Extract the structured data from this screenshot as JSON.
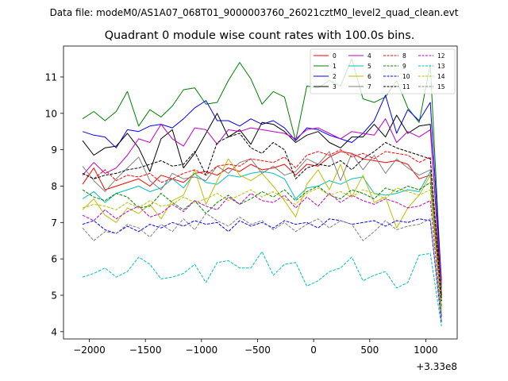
{
  "chart_data": {
    "type": "line",
    "suptitle": "Data file: modeM0/AS1A07_068T01_9000003760_26021cztM0_level2_quad_clean.evt",
    "title": "Quadrant 0 module wise count rates with 100.0s bins.",
    "xlabel": "",
    "ylabel": "",
    "x_offset_label": "+3.33e8",
    "xlim": [
      -2230,
      1280
    ],
    "ylim": [
      3.8,
      11.85
    ],
    "xticks": [
      -2000,
      -1500,
      -1000,
      -500,
      0,
      500,
      1000
    ],
    "xtick_labels": [
      "−2000",
      "−1500",
      "−1000",
      "−500",
      "0",
      "500",
      "1000"
    ],
    "yticks": [
      4,
      5,
      6,
      7,
      8,
      9,
      10,
      11
    ],
    "ytick_labels": [
      "4",
      "5",
      "6",
      "7",
      "8",
      "9",
      "10",
      "11"
    ],
    "legend_position": "upper-right",
    "x": [
      -2060,
      -1960,
      -1860,
      -1760,
      -1660,
      -1560,
      -1460,
      -1360,
      -1260,
      -1160,
      -1060,
      -960,
      -860,
      -760,
      -660,
      -560,
      -460,
      -360,
      -260,
      -160,
      -60,
      40,
      140,
      240,
      340,
      440,
      540,
      640,
      740,
      840,
      940,
      1040,
      1140
    ],
    "series": [
      {
        "name": "0",
        "color": "#ff0000",
        "dash": "solid",
        "values": [
          8.05,
          8.5,
          7.9,
          8.0,
          8.1,
          8.2,
          8.0,
          8.3,
          8.2,
          8.1,
          8.35,
          8.4,
          8.3,
          8.5,
          8.4,
          8.6,
          8.45,
          8.5,
          8.6,
          8.3,
          8.6,
          8.55,
          8.8,
          8.95,
          8.9,
          8.75,
          8.7,
          8.65,
          8.7,
          8.6,
          8.2,
          8.3,
          5.0
        ]
      },
      {
        "name": "1",
        "color": "#008000",
        "dash": "solid",
        "values": [
          9.85,
          10.05,
          9.8,
          10.05,
          10.6,
          9.65,
          10.1,
          9.9,
          10.2,
          10.65,
          10.7,
          10.25,
          10.3,
          10.9,
          11.4,
          10.95,
          10.25,
          10.6,
          10.45,
          9.25,
          10.75,
          10.7,
          10.9,
          10.75,
          11.5,
          10.4,
          10.3,
          10.45,
          10.9,
          10.15,
          9.75,
          11.35,
          5.2
        ]
      },
      {
        "name": "2",
        "color": "#0000ff",
        "dash": "solid",
        "values": [
          9.5,
          9.4,
          9.35,
          9.05,
          9.55,
          9.5,
          9.65,
          9.7,
          9.6,
          9.85,
          10.15,
          10.35,
          9.8,
          9.8,
          9.65,
          9.85,
          9.7,
          9.8,
          9.6,
          9.25,
          9.6,
          9.55,
          9.4,
          9.3,
          9.2,
          9.45,
          9.8,
          10.5,
          9.45,
          10.1,
          9.8,
          10.3,
          5.4
        ]
      },
      {
        "name": "3",
        "color": "#000000",
        "dash": "solid",
        "values": [
          9.25,
          8.85,
          9.05,
          9.1,
          9.45,
          9.05,
          8.4,
          9.3,
          9.55,
          8.5,
          8.9,
          9.45,
          10.0,
          9.35,
          9.55,
          9.15,
          9.75,
          9.7,
          9.5,
          9.2,
          9.4,
          9.5,
          9.2,
          9.05,
          9.35,
          9.35,
          9.7,
          9.35,
          9.95,
          9.45,
          9.65,
          9.7,
          5.0
        ]
      },
      {
        "name": "4",
        "color": "#bf00bf",
        "dash": "solid",
        "values": [
          8.3,
          8.65,
          8.35,
          8.5,
          8.85,
          9.3,
          9.2,
          9.7,
          9.3,
          9.1,
          9.6,
          9.55,
          9.15,
          9.55,
          9.5,
          9.6,
          9.55,
          9.5,
          9.45,
          9.3,
          9.55,
          9.6,
          9.45,
          9.3,
          9.5,
          9.45,
          9.4,
          9.85,
          9.2,
          9.5,
          9.35,
          9.55,
          5.3
        ]
      },
      {
        "name": "5",
        "color": "#00bfbf",
        "dash": "solid",
        "values": [
          7.65,
          7.85,
          7.55,
          7.8,
          7.9,
          8.0,
          7.85,
          7.95,
          8.2,
          7.95,
          8.35,
          8.1,
          8.05,
          8.3,
          8.25,
          8.35,
          8.4,
          8.35,
          8.2,
          7.65,
          7.95,
          8.0,
          8.15,
          8.05,
          8.2,
          8.25,
          7.8,
          7.75,
          7.8,
          7.9,
          7.85,
          8.4,
          4.45
        ]
      },
      {
        "name": "6",
        "color": "#bfbf00",
        "dash": "solid",
        "values": [
          7.35,
          7.65,
          7.2,
          7.0,
          7.4,
          7.25,
          7.5,
          7.1,
          7.6,
          7.75,
          8.45,
          7.5,
          8.15,
          8.75,
          8.3,
          8.15,
          8.35,
          8.0,
          7.6,
          7.15,
          8.05,
          8.45,
          7.9,
          8.6,
          7.7,
          8.3,
          7.55,
          7.7,
          6.85,
          7.4,
          7.75,
          8.3,
          4.6
        ]
      },
      {
        "name": "7",
        "color": "#808080",
        "dash": "solid",
        "values": [
          8.55,
          8.15,
          7.85,
          8.2,
          8.5,
          8.8,
          8.15,
          7.9,
          8.35,
          8.2,
          8.25,
          8.15,
          8.55,
          8.35,
          8.65,
          8.75,
          8.35,
          8.55,
          8.3,
          8.4,
          8.75,
          8.6,
          8.95,
          8.15,
          8.9,
          8.45,
          8.85,
          8.35,
          8.75,
          8.5,
          8.3,
          8.45,
          5.1
        ]
      },
      {
        "name": "8",
        "color": "#ff0000",
        "dash": "dashed",
        "values": [
          8.35,
          8.2,
          8.45,
          8.15,
          8.3,
          8.25,
          8.35,
          8.1,
          8.2,
          8.35,
          8.45,
          8.3,
          8.55,
          8.6,
          8.55,
          8.75,
          8.7,
          8.65,
          8.8,
          8.5,
          8.85,
          8.95,
          8.85,
          9.0,
          8.8,
          8.9,
          8.75,
          8.95,
          8.9,
          8.85,
          8.65,
          8.8,
          4.9
        ]
      },
      {
        "name": "9",
        "color": "#008000",
        "dash": "dashed",
        "values": [
          7.9,
          7.7,
          7.6,
          7.8,
          7.7,
          7.4,
          7.45,
          7.8,
          7.55,
          7.35,
          7.6,
          7.25,
          7.55,
          7.75,
          7.5,
          7.65,
          7.85,
          7.7,
          7.9,
          7.6,
          7.85,
          8.0,
          7.75,
          7.65,
          7.9,
          7.8,
          7.65,
          7.95,
          7.85,
          8.0,
          7.9,
          8.1,
          4.7
        ]
      },
      {
        "name": "10",
        "color": "#0000ff",
        "dash": "dashed",
        "values": [
          6.95,
          7.05,
          6.8,
          6.7,
          6.9,
          6.75,
          6.95,
          6.85,
          7.0,
          6.9,
          7.05,
          6.95,
          7.0,
          6.75,
          7.05,
          6.9,
          7.0,
          6.85,
          7.05,
          6.95,
          7.0,
          6.85,
          7.1,
          7.05,
          6.95,
          7.0,
          7.05,
          6.9,
          7.05,
          7.0,
          7.1,
          7.05,
          4.25
        ]
      },
      {
        "name": "11",
        "color": "#000000",
        "dash": "dashed",
        "values": [
          8.35,
          8.2,
          8.3,
          8.35,
          8.45,
          8.5,
          8.6,
          8.7,
          8.55,
          8.6,
          8.95,
          8.3,
          9.2,
          9.35,
          9.45,
          9.05,
          8.9,
          9.2,
          9.0,
          8.2,
          8.5,
          8.6,
          8.55,
          8.7,
          8.45,
          8.75,
          8.95,
          9.2,
          9.05,
          8.95,
          8.85,
          8.75,
          4.85
        ]
      },
      {
        "name": "12",
        "color": "#bf00bf",
        "dash": "dashed",
        "values": [
          7.2,
          7.05,
          7.35,
          7.1,
          7.3,
          7.45,
          7.15,
          7.25,
          7.5,
          7.3,
          7.6,
          7.45,
          7.35,
          7.7,
          7.5,
          7.8,
          7.6,
          7.55,
          7.75,
          7.4,
          7.7,
          7.45,
          7.8,
          7.55,
          7.75,
          7.6,
          7.5,
          7.65,
          7.55,
          7.4,
          7.45,
          7.6,
          4.4
        ]
      },
      {
        "name": "13",
        "color": "#00bfbf",
        "dash": "dashed",
        "values": [
          5.5,
          5.6,
          5.75,
          5.5,
          5.65,
          6.05,
          5.85,
          5.45,
          5.5,
          5.6,
          5.85,
          5.35,
          5.9,
          5.95,
          5.75,
          5.75,
          6.2,
          5.55,
          5.85,
          5.9,
          5.25,
          5.4,
          5.65,
          5.75,
          6.05,
          5.4,
          5.55,
          5.65,
          5.2,
          5.35,
          6.1,
          6.15,
          4.15
        ]
      },
      {
        "name": "14",
        "color": "#bfbf00",
        "dash": "dashed",
        "values": [
          7.4,
          7.5,
          7.45,
          7.35,
          7.55,
          7.4,
          7.6,
          7.45,
          7.5,
          7.7,
          7.55,
          7.65,
          7.8,
          7.6,
          7.75,
          7.9,
          7.7,
          7.85,
          7.65,
          7.5,
          7.8,
          7.95,
          7.75,
          7.85,
          7.7,
          7.9,
          7.8,
          7.65,
          7.95,
          7.85,
          7.75,
          7.9,
          4.55
        ]
      },
      {
        "name": "15",
        "color": "#808080",
        "dash": "dashed",
        "values": [
          6.85,
          6.5,
          6.75,
          6.7,
          6.95,
          6.85,
          6.6,
          6.95,
          6.75,
          7.1,
          6.8,
          7.25,
          7.05,
          6.9,
          7.15,
          6.95,
          7.05,
          6.8,
          7.0,
          6.75,
          6.95,
          7.1,
          6.85,
          7.05,
          6.95,
          6.5,
          6.75,
          7.05,
          6.8,
          6.9,
          6.95,
          7.1,
          4.3
        ]
      }
    ]
  }
}
